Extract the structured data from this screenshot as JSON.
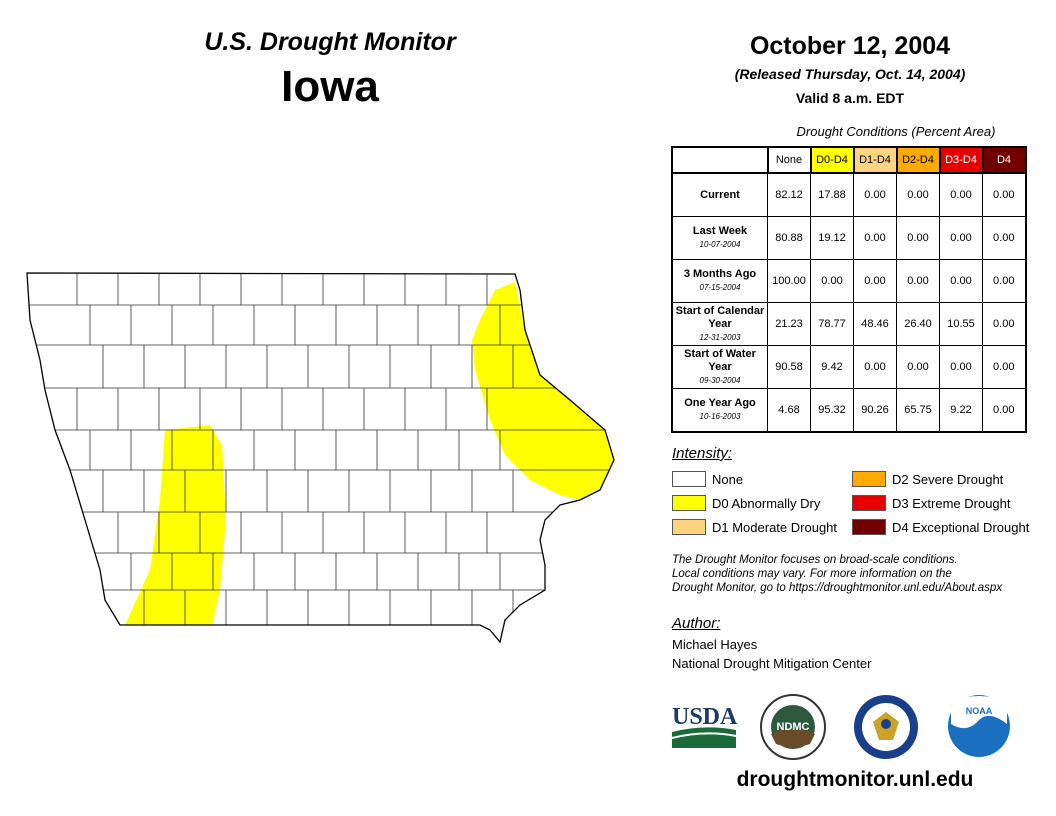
{
  "header": {
    "title": "U.S. Drought Monitor",
    "state": "Iowa",
    "date": "October 12, 2004",
    "released": "(Released Thursday, Oct. 14, 2004)",
    "valid": "Valid 8 a.m. EDT"
  },
  "table": {
    "caption": "Drought Conditions (Percent Area)",
    "columns": [
      {
        "label": "None",
        "bg": "#ffffff",
        "fg": "#000000"
      },
      {
        "label": "D0-D4",
        "bg": "#ffff00",
        "fg": "#000000"
      },
      {
        "label": "D1-D4",
        "bg": "#fcd37f",
        "fg": "#000000"
      },
      {
        "label": "D2-D4",
        "bg": "#ffaa00",
        "fg": "#000000"
      },
      {
        "label": "D3-D4",
        "bg": "#e60000",
        "fg": "#ffffff"
      },
      {
        "label": "D4",
        "bg": "#730000",
        "fg": "#ffffff"
      }
    ],
    "rows": [
      {
        "label": "Current",
        "date": "",
        "values": [
          "82.12",
          "17.88",
          "0.00",
          "0.00",
          "0.00",
          "0.00"
        ]
      },
      {
        "label": "Last Week",
        "date": "10-07-2004",
        "values": [
          "80.88",
          "19.12",
          "0.00",
          "0.00",
          "0.00",
          "0.00"
        ]
      },
      {
        "label": "3 Months Ago",
        "date": "07-15-2004",
        "values": [
          "100.00",
          "0.00",
          "0.00",
          "0.00",
          "0.00",
          "0.00"
        ]
      },
      {
        "label": "Start of Calendar Year",
        "date": "12-31-2003",
        "values": [
          "21.23",
          "78.77",
          "48.46",
          "26.40",
          "10.55",
          "0.00"
        ]
      },
      {
        "label": "Start of Water Year",
        "date": "09-30-2004",
        "values": [
          "90.58",
          "9.42",
          "0.00",
          "0.00",
          "0.00",
          "0.00"
        ]
      },
      {
        "label": "One Year Ago",
        "date": "10-16-2003",
        "values": [
          "4.68",
          "95.32",
          "90.26",
          "65.75",
          "9.22",
          "0.00"
        ]
      }
    ]
  },
  "legend": {
    "title": "Intensity:",
    "items": [
      {
        "label": "None",
        "color": "#ffffff"
      },
      {
        "label": "D0 Abnormally Dry",
        "color": "#ffff00"
      },
      {
        "label": "D1 Moderate Drought",
        "color": "#fcd37f"
      },
      {
        "label": "D2 Severe Drought",
        "color": "#ffaa00"
      },
      {
        "label": "D3 Extreme Drought",
        "color": "#e60000"
      },
      {
        "label": "D4 Exceptional Drought",
        "color": "#730000"
      }
    ]
  },
  "note": [
    "The Drought Monitor focuses on broad-scale conditions.",
    "Local conditions may vary. For more information on the",
    "Drought Monitor, go to https://droughtmonitor.unl.edu/About.aspx"
  ],
  "author": {
    "label": "Author:",
    "name": "Michael Hayes",
    "org": "National Drought Mitigation Center"
  },
  "logos": {
    "usda": "USDA",
    "ndmc": "NDMC",
    "noaa": "NOAA"
  },
  "url": "droughtmonitor.unl.edu"
}
